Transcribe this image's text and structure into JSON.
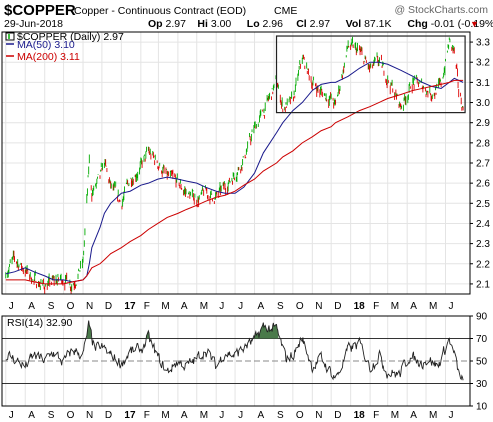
{
  "header": {
    "symbol": "$COPPER",
    "name": "Copper - Continuous Contract (EOD)",
    "exchange": "CME",
    "watermark": "@ StockCharts.com",
    "date": "29-Jun-2018",
    "ohlc": [
      {
        "label": "Op",
        "value": "2.97"
      },
      {
        "label": "Hi",
        "value": "3.00"
      },
      {
        "label": "Lo",
        "value": "2.96"
      },
      {
        "label": "Cl",
        "value": "2.97"
      },
      {
        "label": "Vol",
        "value": "87.1K"
      },
      {
        "label": "Chg",
        "value": "-0.01 (-0.19%)"
      }
    ],
    "chg_arrow": "▼"
  },
  "legend": {
    "main": "$COPPER (Daily) 2.97",
    "ma50": "MA(50) 3.10",
    "ma200": "MA(200) 3.11"
  },
  "rsi_label": "RSI(14) 32.90",
  "colors": {
    "up": "#00aa00",
    "down": "#dd0000",
    "ma50": "#1a1a8c",
    "ma200": "#cc0000",
    "rsi": "#222222",
    "rsi_fill": "#4a7a4a",
    "accent": "#cc0000",
    "legend_box": "#222222"
  },
  "chart_data": [
    {
      "type": "line",
      "title": "$COPPER (Daily) 2.97",
      "x": [
        "2016-07-01",
        "2016-07-15",
        "2016-08-01",
        "2016-08-15",
        "2016-09-01",
        "2016-09-15",
        "2016-10-01",
        "2016-10-15",
        "2016-11-01",
        "2016-11-07",
        "2016-11-11",
        "2016-11-15",
        "2016-11-28",
        "2016-12-05",
        "2016-12-15",
        "2017-01-01",
        "2017-01-15",
        "2017-02-01",
        "2017-02-13",
        "2017-02-28",
        "2017-03-15",
        "2017-04-01",
        "2017-04-15",
        "2017-05-01",
        "2017-05-15",
        "2017-06-01",
        "2017-06-15",
        "2017-07-01",
        "2017-07-15",
        "2017-08-01",
        "2017-08-15",
        "2017-09-05",
        "2017-09-15",
        "2017-10-01",
        "2017-10-16",
        "2017-11-01",
        "2017-11-15",
        "2017-12-01",
        "2017-12-08",
        "2017-12-28",
        "2018-01-15",
        "2018-02-01",
        "2018-02-15",
        "2018-03-01",
        "2018-03-22",
        "2018-04-10",
        "2018-04-25",
        "2018-05-10",
        "2018-05-25",
        "2018-06-07",
        "2018-06-15",
        "2018-06-22",
        "2018-06-29"
      ],
      "series": [
        {
          "name": "$COPPER",
          "values": [
            2.16,
            2.22,
            2.17,
            2.12,
            2.09,
            2.11,
            2.13,
            2.1,
            2.2,
            2.5,
            2.7,
            2.55,
            2.62,
            2.7,
            2.58,
            2.5,
            2.62,
            2.68,
            2.75,
            2.7,
            2.63,
            2.6,
            2.55,
            2.52,
            2.55,
            2.53,
            2.58,
            2.65,
            2.72,
            2.87,
            2.95,
            3.1,
            2.98,
            3.0,
            3.22,
            3.1,
            3.05,
            3.02,
            2.98,
            3.28,
            3.25,
            3.16,
            3.2,
            3.12,
            2.98,
            3.1,
            3.08,
            3.05,
            3.08,
            3.3,
            3.25,
            3.05,
            2.97
          ]
        },
        {
          "name": "MA(50)",
          "values": [
            2.15,
            2.16,
            2.18,
            2.16,
            2.14,
            2.12,
            2.12,
            2.11,
            2.12,
            2.14,
            2.2,
            2.28,
            2.38,
            2.45,
            2.5,
            2.55,
            2.56,
            2.59,
            2.6,
            2.62,
            2.63,
            2.62,
            2.61,
            2.6,
            2.58,
            2.56,
            2.55,
            2.55,
            2.58,
            2.65,
            2.75,
            2.85,
            2.9,
            2.96,
            3.0,
            3.06,
            3.09,
            3.1,
            3.1,
            3.13,
            3.17,
            3.2,
            3.2,
            3.19,
            3.16,
            3.13,
            3.1,
            3.08,
            3.07,
            3.1,
            3.12,
            3.11,
            3.1
          ]
        },
        {
          "name": "MA(200)",
          "values": [
            2.12,
            2.12,
            2.12,
            2.11,
            2.1,
            2.1,
            2.1,
            2.11,
            2.12,
            2.14,
            2.16,
            2.18,
            2.2,
            2.22,
            2.25,
            2.28,
            2.31,
            2.34,
            2.37,
            2.4,
            2.43,
            2.45,
            2.47,
            2.49,
            2.51,
            2.53,
            2.54,
            2.56,
            2.59,
            2.62,
            2.66,
            2.7,
            2.73,
            2.76,
            2.8,
            2.83,
            2.86,
            2.88,
            2.9,
            2.93,
            2.96,
            2.98,
            3.0,
            3.02,
            3.04,
            3.06,
            3.07,
            3.08,
            3.09,
            3.1,
            3.11,
            3.11,
            3.11
          ]
        }
      ],
      "ylim": [
        2.05,
        3.35
      ],
      "y_ticks": [
        "2.1",
        "2.2",
        "2.3",
        "2.4",
        "2.5",
        "2.6",
        "2.7",
        "2.8",
        "2.9",
        "3.0",
        "3.1",
        "3.2",
        "3.3"
      ],
      "x_tick_labels": [
        "J",
        "A",
        "S",
        "O",
        "N",
        "D",
        "17",
        "F",
        "M",
        "A",
        "M",
        "J",
        "J",
        "A",
        "S",
        "O",
        "N",
        "D",
        "18",
        "F",
        "M",
        "A",
        "M",
        "J"
      ],
      "annotation_box": {
        "x0": "2017-09-05",
        "x1": "2018-06-29",
        "y0": 2.95,
        "y1": 3.33
      },
      "legend_position": "top-left",
      "grid": true
    },
    {
      "type": "line",
      "title": "RSI(14) 32.90",
      "x": [
        "2016-07-01",
        "2016-07-15",
        "2016-08-01",
        "2016-08-15",
        "2016-09-01",
        "2016-09-15",
        "2016-10-01",
        "2016-10-15",
        "2016-11-01",
        "2016-11-10",
        "2016-11-20",
        "2016-12-01",
        "2016-12-15",
        "2017-01-01",
        "2017-01-15",
        "2017-02-01",
        "2017-02-13",
        "2017-03-01",
        "2017-03-15",
        "2017-04-01",
        "2017-04-15",
        "2017-05-01",
        "2017-05-15",
        "2017-06-01",
        "2017-06-15",
        "2017-07-01",
        "2017-07-15",
        "2017-08-01",
        "2017-08-15",
        "2017-09-05",
        "2017-09-20",
        "2017-10-01",
        "2017-10-16",
        "2017-11-01",
        "2017-11-15",
        "2017-12-01",
        "2017-12-10",
        "2017-12-28",
        "2018-01-15",
        "2018-02-01",
        "2018-02-15",
        "2018-03-01",
        "2018-03-20",
        "2018-04-05",
        "2018-04-20",
        "2018-05-05",
        "2018-05-20",
        "2018-06-07",
        "2018-06-15",
        "2018-06-22",
        "2018-06-29"
      ],
      "series": [
        {
          "name": "RSI(14)",
          "values": [
            55,
            52,
            45,
            55,
            50,
            58,
            48,
            60,
            55,
            80,
            60,
            62,
            55,
            48,
            58,
            60,
            70,
            52,
            40,
            50,
            45,
            52,
            60,
            45,
            58,
            55,
            62,
            68,
            80,
            78,
            52,
            55,
            70,
            45,
            52,
            40,
            35,
            60,
            65,
            45,
            55,
            40,
            38,
            55,
            48,
            52,
            45,
            70,
            55,
            38,
            32.9
          ]
        }
      ],
      "ylim": [
        10,
        90
      ],
      "y_ticks": [
        "90",
        "70",
        "50",
        "30",
        "10"
      ],
      "levels": [
        70,
        50,
        30
      ],
      "x_tick_labels": [
        "J",
        "A",
        "S",
        "O",
        "N",
        "D",
        "17",
        "F",
        "M",
        "A",
        "M",
        "J",
        "J",
        "A",
        "S",
        "O",
        "N",
        "D",
        "18",
        "F",
        "M",
        "A",
        "M",
        "J"
      ],
      "grid": true
    }
  ]
}
